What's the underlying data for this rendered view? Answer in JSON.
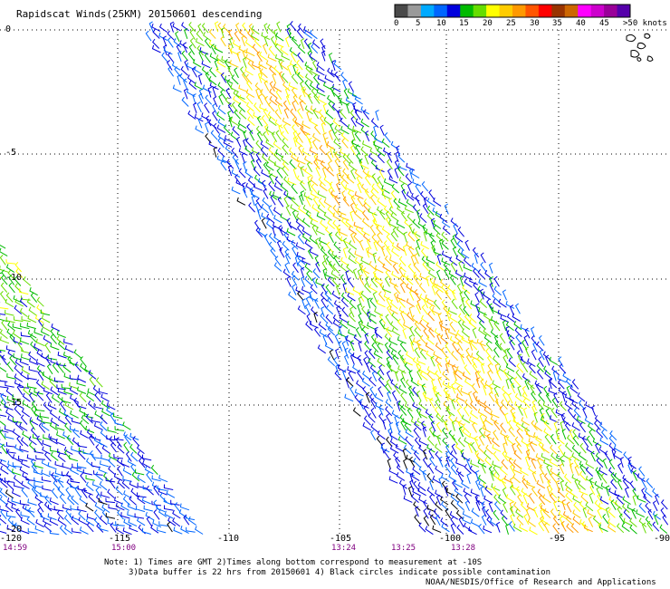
{
  "title": "Rapidscat Winds(25KM) 20150601 descending",
  "legend": {
    "colors": [
      "#4a4a4a",
      "#9a9a9a",
      "#00aaff",
      "#0066ff",
      "#0000dd",
      "#00bb00",
      "#66dd00",
      "#ffff00",
      "#ffcc00",
      "#ff9900",
      "#ff5500",
      "#ff0000",
      "#993300",
      "#cc6600",
      "#ff00ff",
      "#cc00cc",
      "#990099",
      "#5500aa"
    ],
    "labels": [
      "0",
      "5",
      "10",
      "15",
      "20",
      "25",
      "30",
      "35",
      "40",
      "45",
      ">50 knots"
    ]
  },
  "axes": {
    "lat_labels": [
      "0",
      "-5",
      "-10",
      "-15",
      "-20"
    ],
    "lon_labels": [
      "-120",
      "-115",
      "-110",
      "-105",
      "-100",
      "-95",
      "-90"
    ]
  },
  "times": [
    "14:59",
    "15:00",
    "13:24",
    "13:25",
    "13:28"
  ],
  "notes": {
    "line1": "Note: 1) Times are GMT 2)Times along bottom correspond to measurement at -10S",
    "line2": "3)Data buffer is 22 hrs from 20150601 4) Black circles indicate possible contamination",
    "line3": "NOAA/NESDIS/Office of Research and Applications"
  }
}
